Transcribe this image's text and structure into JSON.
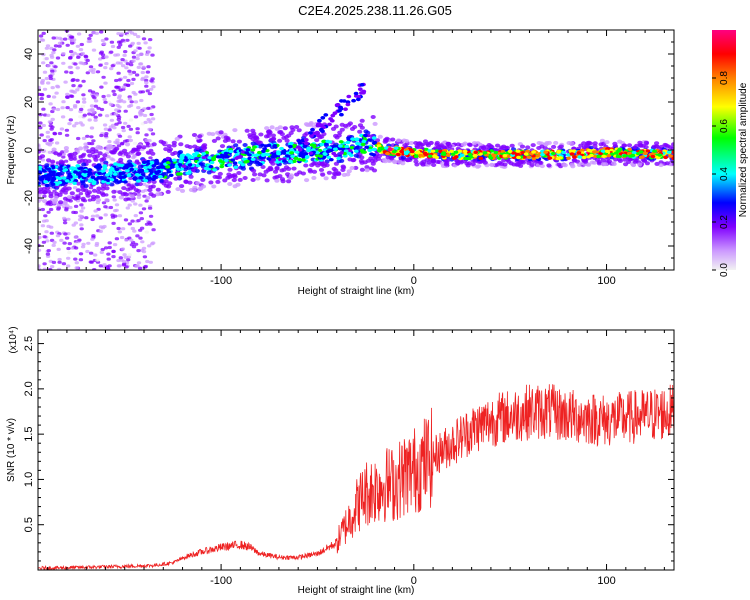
{
  "title": "C2E4.2025.238.11.26.G05",
  "chart_data": [
    {
      "type": "heatmap",
      "title": "C2E4.2025.238.11.26.G05",
      "xlabel": "Height of straight line (km)",
      "ylabel": "Frequency (Hz)",
      "xlim": [
        -195,
        135
      ],
      "ylim": [
        -50,
        50
      ],
      "xticks": [
        -100,
        0,
        100
      ],
      "yticks": [
        -40,
        -20,
        0,
        20,
        40
      ],
      "colorbar": {
        "label": "Normalized spectral amplitude",
        "range": [
          0,
          1
        ],
        "ticks": [
          "0.0",
          "0.2",
          "0.4",
          "0.6",
          "0.8"
        ],
        "colors": [
          "#f2f2f2",
          "#cc99ff",
          "#8000ff",
          "#0000ff",
          "#00ffff",
          "#00ff00",
          "#ffff00",
          "#ff8000",
          "#ff0000",
          "#ff0080"
        ]
      },
      "ridge": {
        "x": [
          -195,
          -160,
          -140,
          -120,
          -100,
          -80,
          -60,
          -40,
          -25,
          -15,
          0,
          20,
          50,
          80,
          100,
          135
        ],
        "freq": [
          -11,
          -10,
          -9,
          -6,
          -4,
          -2,
          -1,
          0,
          3,
          0,
          -1,
          -2,
          -2,
          -2,
          -1,
          -2
        ]
      }
    },
    {
      "type": "line",
      "xlabel": "Height of straight line (km)",
      "ylabel": "SNR (10 * v/v)",
      "y_scale_label": "(x10⁴)",
      "xlim": [
        -195,
        135
      ],
      "ylim": [
        0,
        2.65
      ],
      "xticks": [
        -100,
        0,
        100
      ],
      "yticks": [
        0.5,
        1.0,
        1.5,
        2.0,
        2.5
      ],
      "ytick_labels": [
        "0.5",
        "1.0",
        "1.5",
        "2.0",
        "2.5"
      ],
      "series": [
        {
          "name": "SNR",
          "color": "#ee2222",
          "x": [
            -195,
            -170,
            -150,
            -135,
            -125,
            -118,
            -110,
            -100,
            -90,
            -85,
            -80,
            -70,
            -60,
            -50,
            -40,
            -35,
            -30,
            -25,
            -20,
            -15,
            -10,
            -5,
            0,
            10,
            20,
            30,
            40,
            50,
            60,
            70,
            80,
            90,
            100,
            110,
            120,
            135
          ],
          "y": [
            0.02,
            0.03,
            0.04,
            0.05,
            0.08,
            0.15,
            0.2,
            0.25,
            0.28,
            0.25,
            0.18,
            0.14,
            0.14,
            0.18,
            0.3,
            0.5,
            0.7,
            0.85,
            0.9,
            0.95,
            0.95,
            1.05,
            1.1,
            1.25,
            1.4,
            1.55,
            1.65,
            1.7,
            1.75,
            1.75,
            1.7,
            1.68,
            1.65,
            1.68,
            1.7,
            1.75
          ]
        }
      ]
    }
  ]
}
